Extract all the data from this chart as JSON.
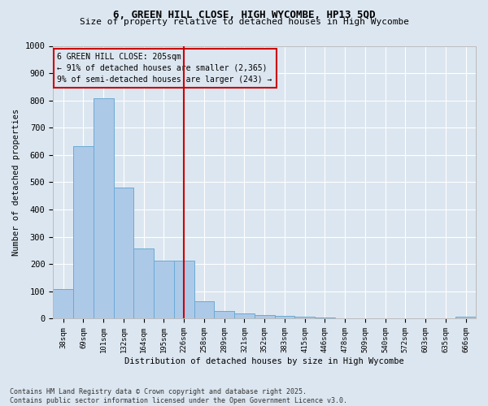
{
  "title_line1": "6, GREEN HILL CLOSE, HIGH WYCOMBE, HP13 5QD",
  "title_line2": "Size of property relative to detached houses in High Wycombe",
  "xlabel": "Distribution of detached houses by size in High Wycombe",
  "ylabel": "Number of detached properties",
  "categories": [
    "38sqm",
    "69sqm",
    "101sqm",
    "132sqm",
    "164sqm",
    "195sqm",
    "226sqm",
    "258sqm",
    "289sqm",
    "321sqm",
    "352sqm",
    "383sqm",
    "415sqm",
    "446sqm",
    "478sqm",
    "509sqm",
    "540sqm",
    "572sqm",
    "603sqm",
    "635sqm",
    "666sqm"
  ],
  "values": [
    110,
    632,
    808,
    482,
    258,
    213,
    213,
    65,
    27,
    18,
    14,
    10,
    8,
    3,
    2,
    1,
    1,
    0,
    0,
    0,
    8
  ],
  "bar_color": "#adc9e8",
  "bar_edge_color": "#6aaad4",
  "vline_x": 6,
  "vline_color": "#cc0000",
  "annotation_box_text": "6 GREEN HILL CLOSE: 205sqm\n← 91% of detached houses are smaller (2,365)\n9% of semi-detached houses are larger (243) →",
  "annotation_box_color": "#cc0000",
  "ylim": [
    0,
    1000
  ],
  "yticks": [
    0,
    100,
    200,
    300,
    400,
    500,
    600,
    700,
    800,
    900,
    1000
  ],
  "background_color": "#dce6f0",
  "grid_color": "#ffffff",
  "footnote": "Contains HM Land Registry data © Crown copyright and database right 2025.\nContains public sector information licensed under the Open Government Licence v3.0."
}
